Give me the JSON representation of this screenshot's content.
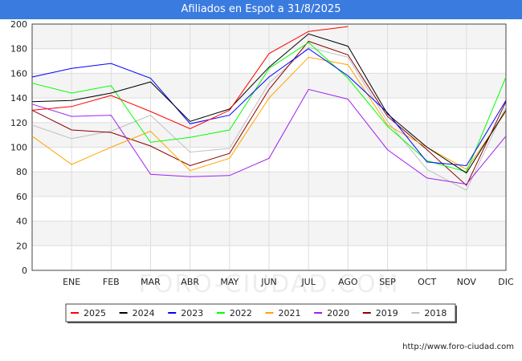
{
  "chart_data": {
    "type": "line",
    "title": "Afiliados en Espot a 31/8/2025",
    "watermark": "FORO-CIUDAD.COM",
    "source": "http://www.foro-ciudad.com",
    "x_labels": [
      "",
      "ENE",
      "FEB",
      "MAR",
      "ABR",
      "MAY",
      "JUN",
      "JUL",
      "AGO",
      "SEP",
      "OCT",
      "NOV",
      "DIC"
    ],
    "ylim": [
      0,
      200
    ],
    "yticks": [
      0,
      20,
      40,
      60,
      80,
      100,
      120,
      140,
      160,
      180,
      200
    ],
    "grid": true,
    "legend_position": "bottom",
    "series": [
      {
        "name": "2025",
        "color": "#ff0000",
        "values": [
          130,
          133,
          142,
          129,
          115,
          130,
          176,
          194,
          198
        ]
      },
      {
        "name": "2024",
        "color": "#000000",
        "values": [
          137,
          138,
          144,
          153,
          121,
          131,
          165,
          192,
          182,
          127,
          100,
          79,
          130
        ]
      },
      {
        "name": "2023",
        "color": "#0000ff",
        "values": [
          157,
          164,
          168,
          156,
          119,
          126,
          157,
          180,
          158,
          128,
          88,
          85,
          138
        ]
      },
      {
        "name": "2022",
        "color": "#00ff00",
        "values": [
          152,
          144,
          150,
          104,
          108,
          114,
          164,
          185,
          156,
          117,
          89,
          80,
          157
        ]
      },
      {
        "name": "2021",
        "color": "#ffa500",
        "values": [
          109,
          86,
          100,
          113,
          81,
          91,
          140,
          173,
          167,
          118,
          100,
          82,
          129
        ]
      },
      {
        "name": "2020",
        "color": "#a020f0",
        "values": [
          135,
          125,
          126,
          78,
          76,
          77,
          91,
          147,
          139,
          98,
          75,
          70,
          109
        ]
      },
      {
        "name": "2019",
        "color": "#8b0000",
        "values": [
          130,
          114,
          112,
          101,
          85,
          95,
          147,
          186,
          175,
          125,
          98,
          69,
          137
        ]
      },
      {
        "name": "2018",
        "color": "#c0c0c0",
        "values": [
          118,
          107,
          113,
          126,
          96,
          99,
          152,
          181,
          173,
          121,
          82,
          65,
          133
        ]
      }
    ]
  }
}
